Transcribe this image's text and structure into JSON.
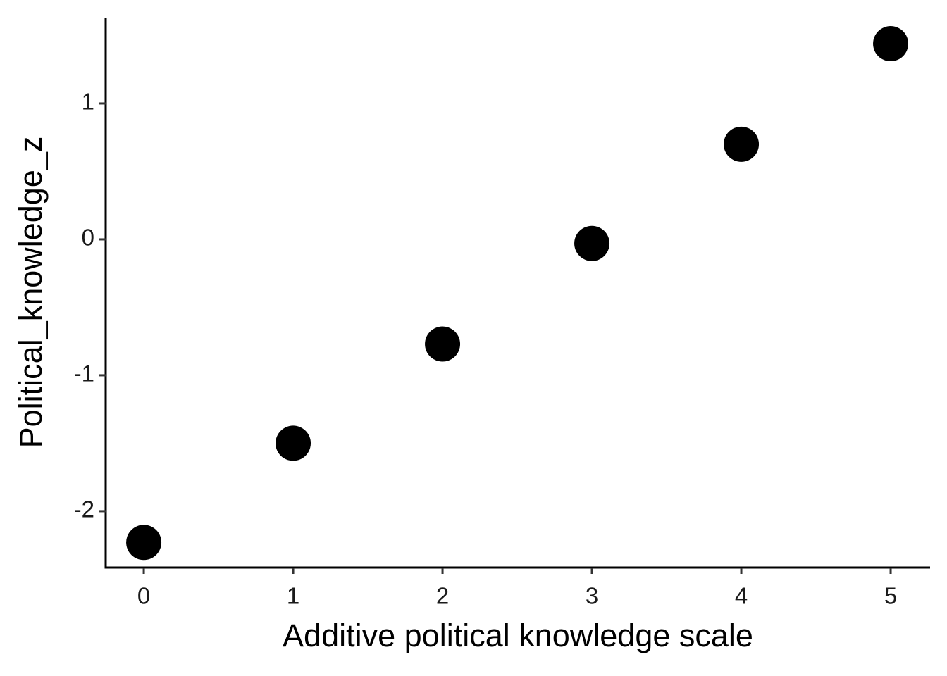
{
  "chart_data": {
    "type": "scatter",
    "x_label": "Additive political knowledge scale",
    "y_label": "Political_knowledge_z",
    "x": [
      0,
      1,
      2,
      3,
      4,
      5
    ],
    "series": [
      {
        "color": "#000000",
        "values": [
          -2.23,
          -1.5,
          -0.77,
          -0.03,
          0.7,
          1.44
        ]
      }
    ],
    "xlim": [
      -0.255,
      5.264
    ],
    "ylim": [
      -2.415,
      1.632
    ],
    "xticks": [
      0,
      1,
      2,
      3,
      4,
      5
    ],
    "yticks": [
      -2,
      -1,
      0,
      1
    ],
    "grid": false
  }
}
